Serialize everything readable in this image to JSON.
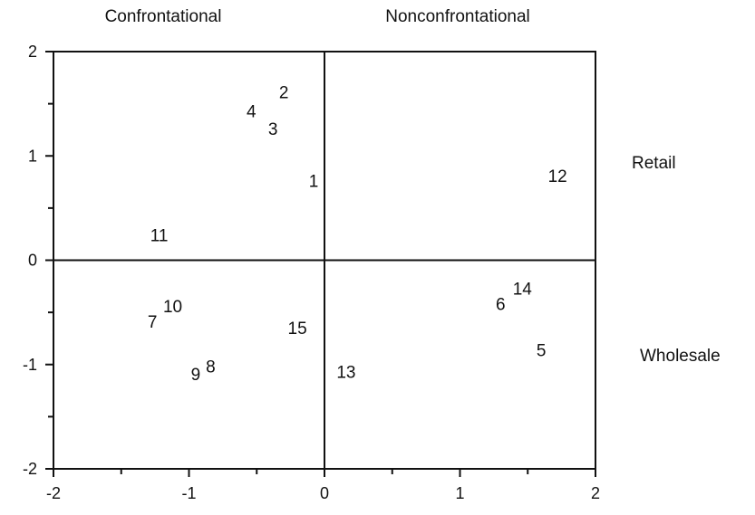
{
  "chart_data": {
    "type": "scatter",
    "title": "",
    "xlabel": "",
    "ylabel": "",
    "xlim": [
      -2,
      2
    ],
    "ylim": [
      -2,
      2
    ],
    "xticks": [
      "-2",
      "-1",
      "0",
      "1",
      "2"
    ],
    "yticks": [
      "2",
      "1",
      "0",
      "-1",
      "-2"
    ],
    "reference_lines": {
      "x": 0,
      "y": 0
    },
    "quadrant_labels": {
      "top_left": "Confrontational",
      "top_right": "Nonconfrontational",
      "right_upper": "Retail",
      "right_lower": "Wholesale"
    },
    "points": [
      {
        "label": "1",
        "x": -0.08,
        "y": 0.75
      },
      {
        "label": "2",
        "x": -0.3,
        "y": 1.6
      },
      {
        "label": "3",
        "x": -0.38,
        "y": 1.25
      },
      {
        "label": "4",
        "x": -0.54,
        "y": 1.42
      },
      {
        "label": "5",
        "x": 1.6,
        "y": -0.87
      },
      {
        "label": "6",
        "x": 1.3,
        "y": -0.43
      },
      {
        "label": "7",
        "x": -1.27,
        "y": -0.6
      },
      {
        "label": "8",
        "x": -0.84,
        "y": -1.03
      },
      {
        "label": "9",
        "x": -0.95,
        "y": -1.1
      },
      {
        "label": "10",
        "x": -1.12,
        "y": -0.45
      },
      {
        "label": "11",
        "x": -1.22,
        "y": 0.23
      },
      {
        "label": "12",
        "x": 1.72,
        "y": 0.8
      },
      {
        "label": "13",
        "x": 0.16,
        "y": -1.08
      },
      {
        "label": "14",
        "x": 1.46,
        "y": -0.28
      },
      {
        "label": "15",
        "x": -0.2,
        "y": -0.66
      }
    ]
  }
}
